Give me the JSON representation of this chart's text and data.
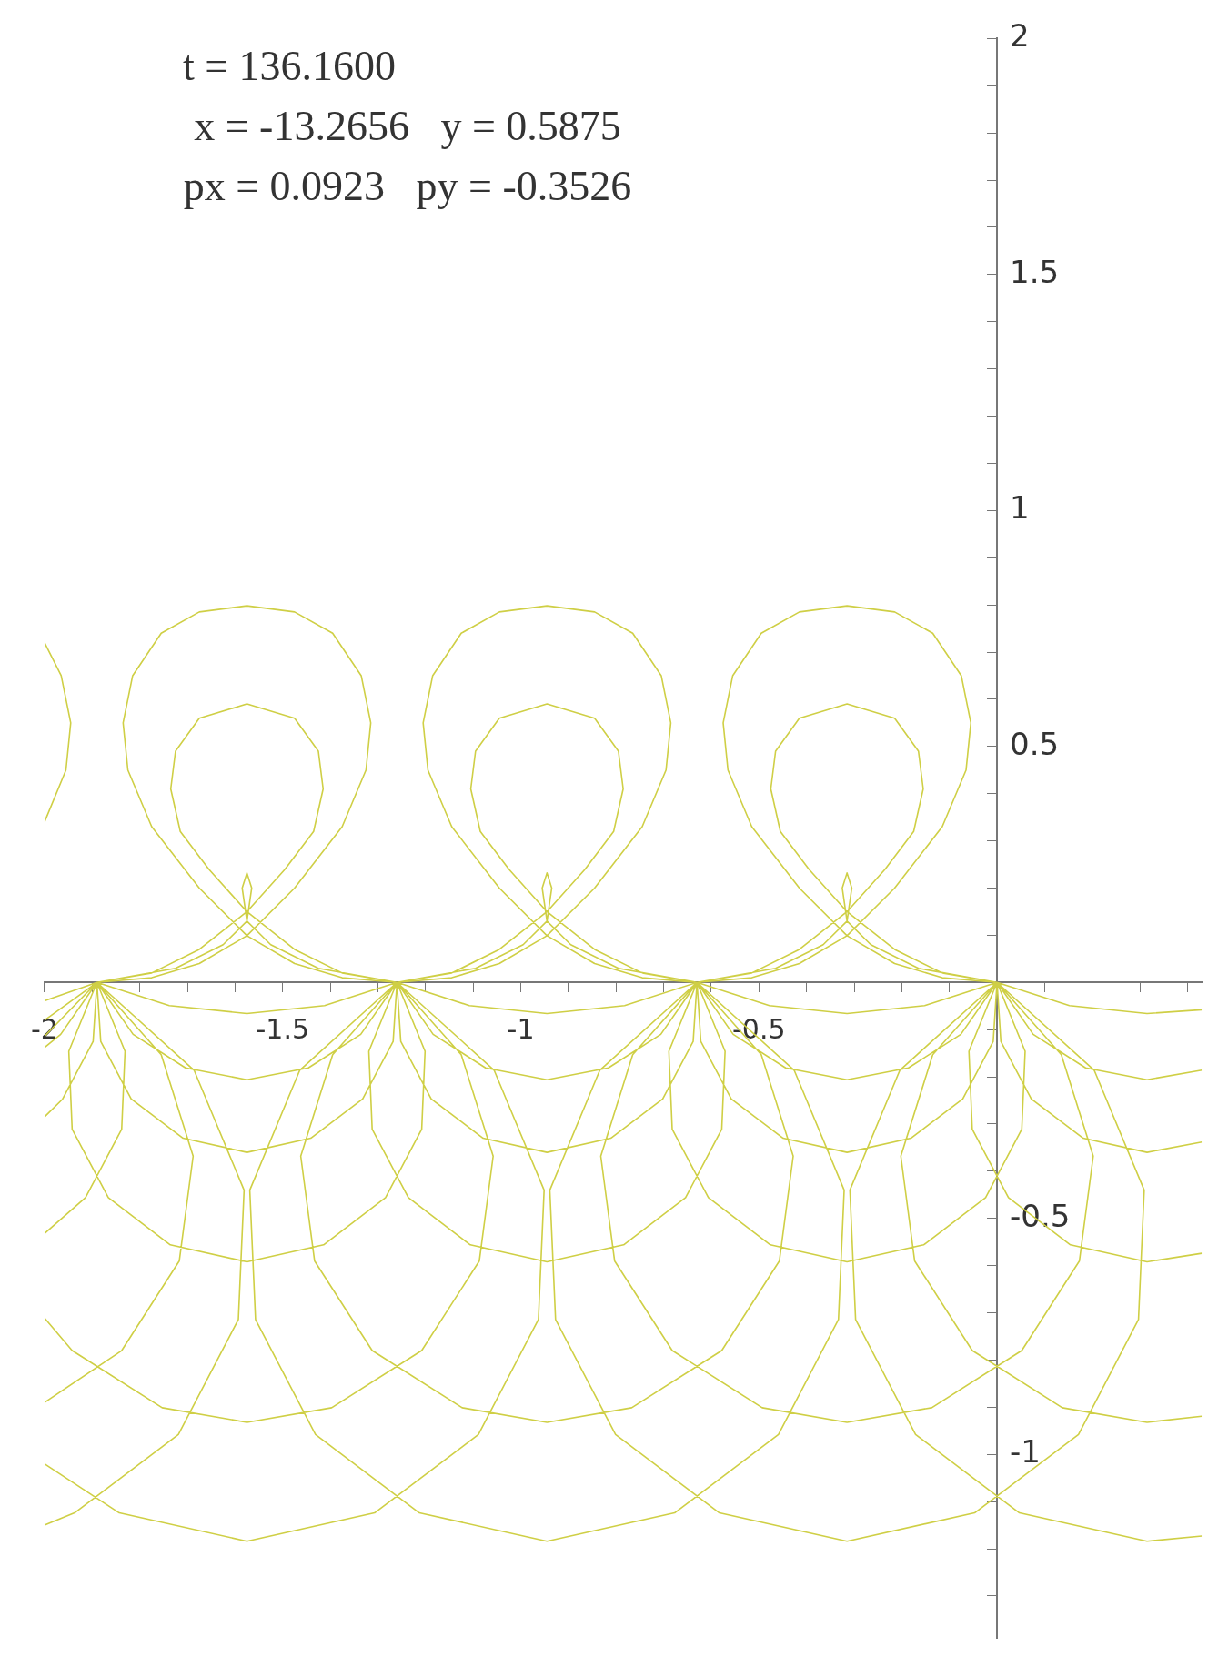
{
  "chart_data": {
    "type": "line",
    "annotations": [
      "t = 136.1600",
      "x = -13.2656   y = 0.5875",
      "px = 0.0923   py = -0.3526"
    ],
    "xlim": [
      -2,
      0.43
    ],
    "ylim": [
      -1.39,
      2
    ],
    "xticks": [
      {
        "value": -2,
        "label": "-2"
      },
      {
        "value": -1.9,
        "label": null
      },
      {
        "value": -1.8,
        "label": null
      },
      {
        "value": -1.7,
        "label": null
      },
      {
        "value": -1.6,
        "label": null
      },
      {
        "value": -1.5,
        "label": "-1.5"
      },
      {
        "value": -1.4,
        "label": null
      },
      {
        "value": -1.3,
        "label": null
      },
      {
        "value": -1.2,
        "label": null
      },
      {
        "value": -1.1,
        "label": null
      },
      {
        "value": -1,
        "label": "-1"
      },
      {
        "value": -0.9,
        "label": null
      },
      {
        "value": -0.8,
        "label": null
      },
      {
        "value": -0.7,
        "label": null
      },
      {
        "value": -0.6,
        "label": null
      },
      {
        "value": -0.5,
        "label": "-0.5"
      },
      {
        "value": -0.4,
        "label": null
      },
      {
        "value": -0.3,
        "label": null
      },
      {
        "value": -0.2,
        "label": null
      },
      {
        "value": -0.1,
        "label": null
      },
      {
        "value": 0.1,
        "label": null
      },
      {
        "value": 0.2,
        "label": null
      },
      {
        "value": 0.3,
        "label": null
      },
      {
        "value": 0.4,
        "label": null
      }
    ],
    "yticks": [
      {
        "value": -1.3,
        "label": null
      },
      {
        "value": -1.2,
        "label": null
      },
      {
        "value": -1.1,
        "label": null
      },
      {
        "value": -1,
        "label": "-1"
      },
      {
        "value": -0.9,
        "label": null
      },
      {
        "value": -0.8,
        "label": null
      },
      {
        "value": -0.7,
        "label": null
      },
      {
        "value": -0.6,
        "label": null
      },
      {
        "value": -0.5,
        "label": "-0.5"
      },
      {
        "value": -0.4,
        "label": null
      },
      {
        "value": -0.3,
        "label": null
      },
      {
        "value": -0.2,
        "label": null
      },
      {
        "value": -0.1,
        "label": null
      },
      {
        "value": 0.1,
        "label": null
      },
      {
        "value": 0.2,
        "label": null
      },
      {
        "value": 0.3,
        "label": null
      },
      {
        "value": 0.4,
        "label": null
      },
      {
        "value": 0.5,
        "label": "0.5"
      },
      {
        "value": 0.6,
        "label": null
      },
      {
        "value": 0.7,
        "label": null
      },
      {
        "value": 0.8,
        "label": null
      },
      {
        "value": 0.9,
        "label": null
      },
      {
        "value": 1,
        "label": "1"
      },
      {
        "value": 1.1,
        "label": null
      },
      {
        "value": 1.2,
        "label": null
      },
      {
        "value": 1.3,
        "label": null
      },
      {
        "value": 1.4,
        "label": null
      },
      {
        "value": 1.5,
        "label": "1.5"
      },
      {
        "value": 1.6,
        "label": null
      },
      {
        "value": 1.7,
        "label": null
      },
      {
        "value": 1.8,
        "label": null
      },
      {
        "value": 1.9,
        "label": null
      },
      {
        "value": 2,
        "label": "2"
      }
    ],
    "series": [
      {
        "color": "#cfcf45",
        "x": [
          -1.89,
          -1.738,
          -1.575,
          -1.412,
          -1.26,
          -1.336,
          -1.446,
          -1.575,
          -1.704,
          -1.814,
          -1.89,
          -1.882,
          -1.818,
          -1.709,
          -1.575,
          -1.441,
          -1.332,
          -1.268,
          -1.26,
          -1.201,
          -1.208,
          -1.284,
          -1.414,
          -1.575,
          -1.736,
          -1.866,
          -1.942,
          -1.949,
          -1.89,
          -2,
          null,
          -2,
          -1.942,
          -1.753,
          -1.575,
          -1.397,
          -1.208,
          -1.087,
          -1.058,
          -1.125,
          -1.26,
          -1.056,
          -0.951,
          -0.963,
          -1.089,
          -1.307,
          -1.575,
          -1.843,
          -2,
          null,
          -2,
          -1.89,
          -1.775,
          -1.675,
          -1.575,
          -1.475,
          -1.375,
          -1.325,
          -1.315,
          -1.335,
          -1.395,
          -1.475,
          -1.575,
          -1.675,
          -1.755,
          -1.815,
          -1.835,
          -1.825,
          -1.775,
          -1.675,
          -1.575,
          -1.475,
          -1.375,
          -1.26,
          -1.375,
          -1.475,
          -1.575,
          -1.655,
          -1.715,
          -1.735,
          -1.725,
          -1.675,
          -1.575,
          -1.475,
          -1.425,
          -1.415,
          -1.435,
          -1.495,
          -1.575,
          -1.675,
          -1.775,
          -1.89,
          -1.725,
          -1.625,
          -1.575,
          -1.565,
          -1.575,
          -1.585,
          -1.575,
          -1.525,
          -1.425,
          -1.26,
          -1.108,
          -0.945,
          -0.782,
          -0.63,
          -0.706,
          -0.816,
          -0.945,
          -1.074,
          -1.184,
          -1.26,
          -1.252,
          -1.188,
          -1.079,
          -0.945,
          -0.811,
          -0.702,
          -0.638,
          -0.63,
          -0.571,
          -0.578,
          -0.654,
          -0.784,
          -0.945,
          -1.106,
          -1.236,
          -1.312,
          -1.319,
          -1.26,
          -1.395,
          -1.462,
          -1.433,
          -1.312,
          -1.123,
          -0.945,
          -0.767,
          -0.578,
          -0.457,
          -0.428,
          -0.495,
          -0.63,
          -0.426,
          -0.321,
          -0.333,
          -0.459,
          -0.677,
          -0.945,
          -1.213,
          -1.431,
          -1.557,
          -1.569,
          -1.464,
          -1.26,
          -1.145,
          -1.045,
          -0.945,
          -0.845,
          -0.745,
          -0.695,
          -0.685,
          -0.705,
          -0.765,
          -0.845,
          -0.945,
          -1.045,
          -1.125,
          -1.185,
          -1.205,
          -1.195,
          -1.145,
          -1.045,
          -0.945,
          -0.845,
          -0.745,
          -0.63,
          -0.745,
          -0.845,
          -0.945,
          -1.025,
          -1.085,
          -1.105,
          -1.095,
          -1.045,
          -0.945,
          -0.845,
          -0.795,
          -0.785,
          -0.805,
          -0.865,
          -0.945,
          -1.045,
          -1.145,
          -1.26,
          -1.095,
          -0.995,
          -0.945,
          -0.935,
          -0.945,
          -0.955,
          -0.945,
          -0.895,
          -0.795,
          -0.63,
          -0.478,
          -0.315,
          -0.152,
          0,
          -0.076,
          -0.186,
          -0.315,
          -0.444,
          -0.554,
          -0.63,
          -0.622,
          -0.558,
          -0.449,
          -0.315,
          -0.181,
          -0.072,
          -0.008,
          0,
          0.059,
          0.052,
          -0.024,
          -0.154,
          -0.315,
          -0.476,
          -0.606,
          -0.682,
          -0.689,
          -0.63,
          -0.765,
          -0.832,
          -0.803,
          -0.682,
          -0.493,
          -0.315,
          -0.137,
          0.052,
          0.173,
          0.202,
          0.135,
          0,
          0.204,
          0.309,
          0.297,
          0.171,
          -0.047,
          -0.315,
          -0.583,
          -0.801,
          -0.927,
          -0.939,
          -0.834,
          -0.63,
          -0.515,
          -0.415,
          -0.315,
          -0.215,
          -0.115,
          -0.065,
          -0.055,
          -0.075,
          -0.135,
          -0.215,
          -0.315,
          -0.415,
          -0.495,
          -0.555,
          -0.575,
          -0.565,
          -0.515,
          -0.415,
          -0.315,
          -0.215,
          -0.115,
          0,
          -0.115,
          -0.215,
          -0.315,
          -0.395,
          -0.455,
          -0.475,
          -0.465,
          -0.415,
          -0.315,
          -0.215,
          -0.165,
          -0.155,
          -0.175,
          -0.235,
          -0.315,
          -0.415,
          -0.515,
          -0.63,
          -0.465,
          -0.365,
          -0.315,
          -0.305,
          -0.315,
          -0.325,
          -0.315,
          -0.265,
          -0.165,
          0,
          null,
          -2,
          -1.89,
          -1.966,
          -2,
          null,
          -2,
          -1.962,
          -1.898,
          -1.89,
          -1.831,
          -1.838,
          -1.914,
          -2,
          null,
          -2,
          -1.838,
          -1.717,
          -1.688,
          -1.755,
          -1.89,
          -1.686,
          -1.581,
          -1.593,
          -1.719,
          -1.937,
          -2,
          null,
          -2,
          -1.955,
          -1.945,
          -1.965,
          -2,
          null,
          0.43,
          0.315,
          0.152,
          0,
          0.076,
          0.186,
          0.315,
          0.43,
          null,
          0.43,
          0.315,
          0.181,
          0.072,
          0.008,
          0,
          -0.059,
          -0.052,
          0.024,
          0.154,
          0.315,
          0.43,
          null,
          0.43,
          0.315,
          0.137,
          -0.052,
          -0.173,
          -0.202,
          -0.135,
          0,
          -0.204,
          -0.309,
          -0.297,
          -0.171,
          0.047,
          0.315,
          0.43
        ],
        "values": [
          0,
          -0.049,
          -0.066,
          -0.049,
          0,
          -0.11,
          -0.181,
          -0.206,
          -0.181,
          -0.11,
          0,
          -0.125,
          -0.247,
          -0.33,
          -0.36,
          -0.33,
          -0.247,
          -0.125,
          0,
          -0.146,
          -0.311,
          -0.456,
          -0.556,
          -0.592,
          -0.556,
          -0.456,
          -0.311,
          -0.146,
          0,
          -0.114,
          null,
          -0.711,
          -0.78,
          -0.901,
          -0.932,
          -0.901,
          -0.78,
          -0.59,
          -0.368,
          -0.153,
          0,
          -0.186,
          -0.44,
          -0.714,
          -0.958,
          -1.124,
          -1.184,
          -1.124,
          -1.02,
          null,
          -0.08,
          0,
          0.01,
          0.04,
          0.099,
          0.2,
          0.33,
          0.45,
          0.55,
          0.65,
          0.74,
          0.785,
          0.798,
          0.785,
          0.74,
          0.65,
          0.55,
          0.45,
          0.33,
          0.2,
          0.099,
          0.04,
          0.01,
          0,
          0.02,
          0.07,
          0.15,
          0.24,
          0.32,
          0.41,
          0.49,
          0.56,
          0.59,
          0.56,
          0.49,
          0.41,
          0.32,
          0.24,
          0.15,
          0.07,
          0.02,
          0,
          0.03,
          0.08,
          0.13,
          0.2,
          0.232,
          0.2,
          0.13,
          0.08,
          0.03,
          0,
          -0.049,
          -0.066,
          -0.049,
          0,
          -0.11,
          -0.181,
          -0.206,
          -0.181,
          -0.11,
          0,
          -0.125,
          -0.247,
          -0.33,
          -0.36,
          -0.33,
          -0.247,
          -0.125,
          0,
          -0.146,
          -0.311,
          -0.456,
          -0.556,
          -0.592,
          -0.556,
          -0.456,
          -0.311,
          -0.146,
          0,
          -0.153,
          -0.368,
          -0.59,
          -0.78,
          -0.901,
          -0.932,
          -0.901,
          -0.78,
          -0.59,
          -0.368,
          -0.153,
          0,
          -0.186,
          -0.44,
          -0.714,
          -0.958,
          -1.124,
          -1.184,
          -1.124,
          -0.958,
          -0.714,
          -0.44,
          -0.186,
          0,
          0.01,
          0.04,
          0.099,
          0.2,
          0.33,
          0.45,
          0.55,
          0.65,
          0.74,
          0.785,
          0.798,
          0.785,
          0.74,
          0.65,
          0.55,
          0.45,
          0.33,
          0.2,
          0.099,
          0.04,
          0.01,
          0,
          0.02,
          0.07,
          0.15,
          0.24,
          0.32,
          0.41,
          0.49,
          0.56,
          0.59,
          0.56,
          0.49,
          0.41,
          0.32,
          0.24,
          0.15,
          0.07,
          0.02,
          0,
          0.03,
          0.08,
          0.13,
          0.2,
          0.232,
          0.2,
          0.13,
          0.08,
          0.03,
          0,
          -0.049,
          -0.066,
          -0.049,
          0,
          -0.11,
          -0.181,
          -0.206,
          -0.181,
          -0.11,
          0,
          -0.125,
          -0.247,
          -0.33,
          -0.36,
          -0.33,
          -0.247,
          -0.125,
          0,
          -0.146,
          -0.311,
          -0.456,
          -0.556,
          -0.592,
          -0.556,
          -0.456,
          -0.311,
          -0.146,
          0,
          -0.153,
          -0.368,
          -0.59,
          -0.78,
          -0.901,
          -0.932,
          -0.901,
          -0.78,
          -0.59,
          -0.368,
          -0.153,
          0,
          -0.186,
          -0.44,
          -0.714,
          -0.958,
          -1.124,
          -1.184,
          -1.124,
          -0.958,
          -0.714,
          -0.44,
          -0.186,
          0,
          0.01,
          0.04,
          0.099,
          0.2,
          0.33,
          0.45,
          0.55,
          0.65,
          0.74,
          0.785,
          0.798,
          0.785,
          0.74,
          0.65,
          0.55,
          0.45,
          0.33,
          0.2,
          0.099,
          0.04,
          0.01,
          0,
          0.02,
          0.07,
          0.15,
          0.24,
          0.32,
          0.41,
          0.49,
          0.56,
          0.59,
          0.56,
          0.49,
          0.41,
          0.32,
          0.24,
          0.15,
          0.07,
          0.02,
          0,
          0.03,
          0.08,
          0.13,
          0.2,
          0.232,
          0.2,
          0.13,
          0.08,
          0.03,
          0,
          null,
          -0.039,
          0,
          -0.11,
          -0.138,
          null,
          -0.285,
          -0.247,
          -0.125,
          0,
          -0.146,
          -0.311,
          -0.456,
          -0.532,
          null,
          -0.89,
          -0.78,
          -0.59,
          -0.368,
          -0.153,
          0,
          -0.186,
          -0.44,
          -0.714,
          -0.958,
          -1.124,
          -1.15,
          null,
          0.34,
          0.45,
          0.55,
          0.65,
          0.72,
          null,
          -0.058,
          -0.066,
          -0.049,
          0,
          -0.11,
          -0.181,
          -0.206,
          -0.186,
          null,
          -0.338,
          -0.36,
          -0.33,
          -0.247,
          -0.125,
          0,
          -0.146,
          -0.311,
          -0.456,
          -0.556,
          -0.592,
          -0.574,
          null,
          -0.919,
          -0.932,
          -0.901,
          -0.78,
          -0.59,
          -0.368,
          -0.153,
          0,
          -0.186,
          -0.44,
          -0.714,
          -0.958,
          -1.124,
          -1.184,
          -1.173
        ]
      }
    ],
    "grid": false,
    "legend": false
  }
}
